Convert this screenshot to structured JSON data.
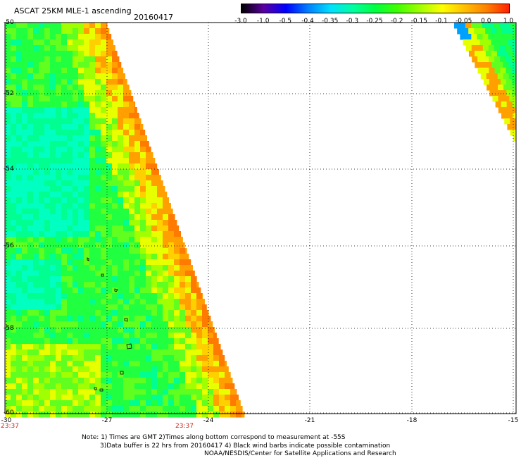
{
  "header": {
    "title": "ASCAT 25KM MLE-1 ascending",
    "date": "20160417"
  },
  "colorbar": {
    "ticks": [
      "-3.0",
      "-1.0",
      "-0.5",
      "-0.4",
      "-0.35",
      "-0.3",
      "-0.25",
      "-0.2",
      "-0.15",
      "-0.1",
      "-0.05",
      "0.0",
      "1.0"
    ],
    "colors": [
      "#000000",
      "#5a00a0",
      "#0000ff",
      "#0080ff",
      "#00e0ff",
      "#00ffa0",
      "#00ff40",
      "#40ff00",
      "#a0ff00",
      "#ffff00",
      "#ffc000",
      "#ff8000",
      "#ff2000"
    ]
  },
  "axes": {
    "lat_labels": [
      "-50",
      "-52",
      "-54",
      "-56",
      "-58",
      "-60"
    ],
    "lon_labels": [
      "-30",
      "-27",
      "-24",
      "-21",
      "-18",
      "-15"
    ],
    "time_labels": [
      "23:37",
      "23:37"
    ]
  },
  "notes": {
    "line1": "Note: 1) Times are GMT 2)Times along bottom correspond to measurement at -55S",
    "line2": "3)Data buffer is 22 hrs from 20160417 4) Black wind barbs indicate possible contamination",
    "line3": "NOAA/NESDIS/Center for Satellite Applications and Research"
  }
}
